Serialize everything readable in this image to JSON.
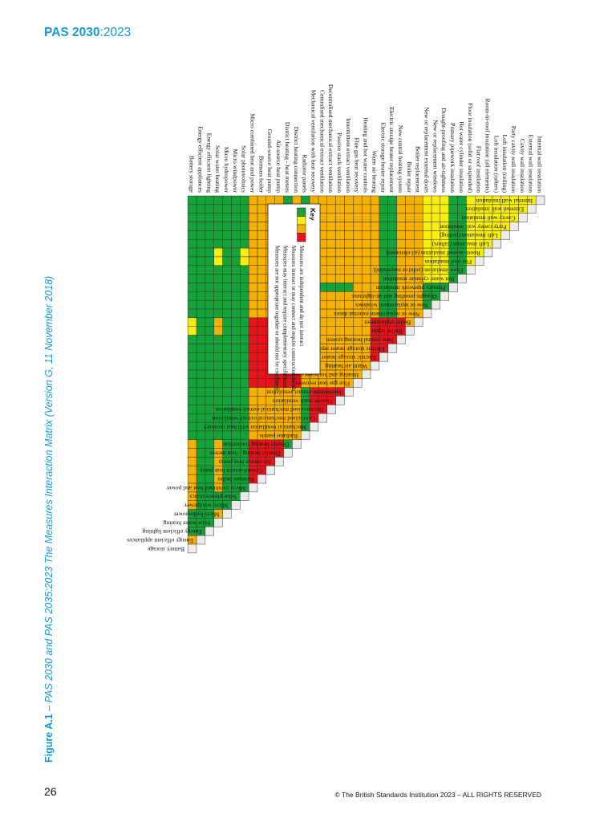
{
  "header": {
    "doc_code": "PAS 2030",
    "doc_year": ":2023"
  },
  "caption": {
    "label": "Figure A.1",
    "text": " – PAS 2030 and PAS 2035:2023 The Measures Interaction Matrix (Version G, 11 November 2018)"
  },
  "footer": {
    "page_number": "26",
    "copyright": "© The British Standards Institution 2023 – ALL RIGHTS RESERVED"
  },
  "colors": {
    "green": "#15a339",
    "yellow": "#f7ee0f",
    "amber": "#f6b100",
    "red": "#e8141b",
    "diag": "#ebebeb",
    "grid": "#2c2c2c"
  },
  "key": {
    "title": "Key",
    "items": [
      {
        "color": "green",
        "text": "Measures are independent and do not interact"
      },
      {
        "color": "yellow",
        "text": "Measures interact or may connect and require construction details"
      },
      {
        "color": "amber",
        "text": "Measures may interact and require complementary specification"
      },
      {
        "color": "red",
        "text": "Measures are not appropriate together or should not be combined"
      }
    ]
  },
  "matrix": {
    "measures": [
      "Internal wall insulation",
      "External wall insulation",
      "Cavity wall insulation",
      "Party cavity wall insulation",
      "Loft insulation (ceiling)",
      "Loft insulation (rafters)",
      "Room-in-roof insulation (all elements)",
      "Flat roof insulation",
      "Floor insulation (solid or suspended)",
      "Hot water cylinder insulation",
      "Primary pipework insulation",
      "Draught-proofing and air-tightness",
      "New or replacement windows",
      "New or replacement external doors",
      "Boiler replacement",
      "Boiler repair",
      "New central heating system",
      "Electric storage heater replacement",
      "Electric storage heater repair",
      "Warm air heating",
      "Heating and hot water controls",
      "Flue gas heat recovery",
      "Intermittent extract ventilation",
      "Passive stack ventilation",
      "Decentralised mechanical extract ventilation",
      "Centralised mechanical extract ventilation",
      "Mechanical ventilation with heat recovery",
      "Radiator panels",
      "District heating connection",
      "District heating - heat meters",
      "Air-source heat pump",
      "Ground-source heat pump",
      "Biomass boiler",
      "Micro combined heat and power",
      "Solar photovoltaics",
      "Micro windpower",
      "Micro hydropower",
      "Solar water heating",
      "Energy efficient lighting",
      "Energy efficient appliances",
      "Battery storage"
    ],
    "rows": [
      "D",
      "YD",
      "YYD",
      "YYYD",
      "YYYYD",
      "YYYYYD",
      "YYYYYYD",
      "YYYYYYYD",
      "YYYYYYYYD",
      "GGGGGGGGGD",
      "GGGGGGGGGGD",
      "YYYYYYYYYYGD",
      "YYYYYYYYYYGGD",
      "YYYYYYYYYYGGGD",
      "AAAAAAAAAAAAAAD",
      "AAAAAAAAAAAAAAAD",
      "AAAAAAAAAAAAAARRD",
      "GGGGGGGGGGGGGGRRRD",
      "GGGGGGGGGGGGGGRRRRD",
      "AAAAAAAAAAAAAARRRRRD",
      "AAAAAAAAAAAAAAAAAAAAD",
      "AAAAAAAAAAAAAAAAAAAAAD",
      "AAAAAAAAAAGAAAAAAAAAAAD",
      "AAAAAAAAAAGAAAAAAAAAAARD",
      "AAAAAAAAAAGAAAAAAAAAAARRD",
      "AAAAAAAAAAGAAAAAAAAAAARRRD",
      "AAAAAAAAAAGAAAAAAAAAAARRRRD",
      "GGGGGGGGGGGGGGAAAAAAAAGGGGGD",
      "AAAAAAAAAAAAAARRRRRRRRAAAAAAD",
      "GGGGGGGGGGGGGGRRRRRRRRAAAAAAGD",
      "AAAAAAAAAAAAAARRRRRRRRAAAAAARRD",
      "AAAAAAAAAAAAAARRRRRRRRAAAAAARRRD",
      "AAAAAAAAAAAAAARRRRRRRRAAAAAARRRRD",
      "AAAAAAAAAAAAAARRRRRRRRAAAAAARRRRRD",
      "GGGGGGYYGGGGGGGGGGGGGGGGGGGGGGGGGGD",
      "GGGGGGGGGGGGGGGGGGGGGGGGGGGGGGGGGGGD",
      "GGGGGGGGGGGGGGGGGGGGGGGGGGGGGGGGGGGGD",
      "GGGGGGYYGGGGGGAAGGGGGGGGGGGGAAAAAAGGAD",
      "GGGGGGGGGGGGGGGGGGGGGGGGGGGGGGGGGGGGGGD",
      "GGGGGGGGGGGGGGGGGGGGGGGGGGGGGGGGGGGGGGGD",
      "GGGGGGGGGGGGGGYYGGGGGGGGGGGGAAAAAAAAGGGAD"
    ]
  }
}
